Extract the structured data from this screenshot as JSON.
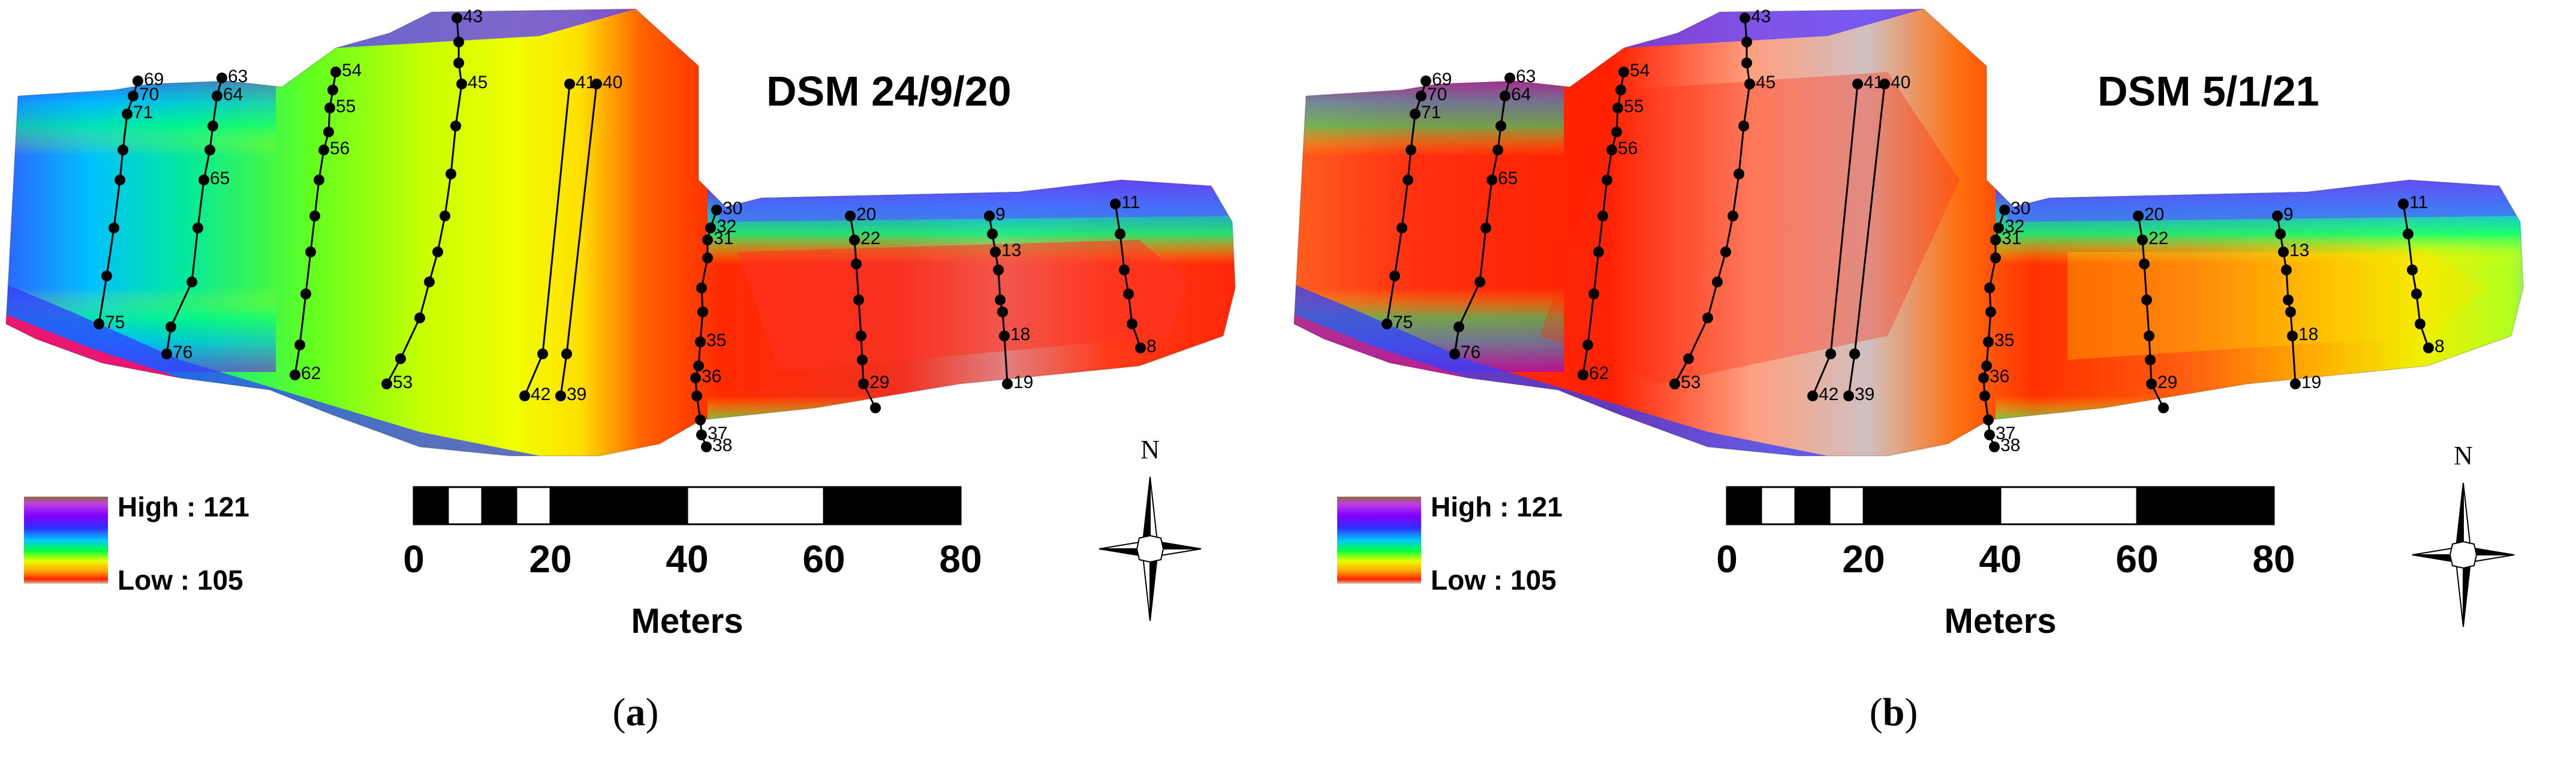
{
  "panels": [
    {
      "id": "a",
      "title": "DSM 24/9/20",
      "caption_letter": "a",
      "variant": "sep"
    },
    {
      "id": "b",
      "title": "DSM 5/1/21",
      "caption_letter": "b",
      "variant": "jan"
    }
  ],
  "legend": {
    "high_label": "High : 121",
    "low_label": "Low : 105",
    "max_value": 121,
    "min_value": 105,
    "colormap": [
      "#d0c0a0",
      "#ff2000",
      "#ffa000",
      "#e8ff00",
      "#00ff40",
      "#00c8ff",
      "#3030ff",
      "#8000ff",
      "#c040e0"
    ]
  },
  "scale_bar": {
    "units": "Meters",
    "ticks": [
      "0",
      "20",
      "40",
      "60",
      "80"
    ],
    "segments_m": [
      [
        0,
        5
      ],
      [
        5,
        10
      ],
      [
        10,
        15
      ],
      [
        15,
        20
      ],
      [
        20,
        40
      ],
      [
        40,
        60
      ],
      [
        60,
        80
      ]
    ],
    "segment_colors": [
      "#000000",
      "#ffffff",
      "#000000",
      "#ffffff",
      "#000000",
      "#ffffff",
      "#000000"
    ]
  },
  "north_arrow": {
    "label": "N",
    "icon": "north-arrow-compass-icon"
  },
  "profile_labels": [
    "69",
    "70",
    "71",
    "75",
    "63",
    "64",
    "65",
    "76",
    "54",
    "55",
    "56",
    "62",
    "43",
    "45",
    "53",
    "41",
    "40",
    "42",
    "39",
    "30",
    "32",
    "31",
    "35",
    "36",
    "37",
    "38",
    "20",
    "22",
    "29",
    "9",
    "13",
    "18",
    "19",
    "11",
    "8"
  ]
}
